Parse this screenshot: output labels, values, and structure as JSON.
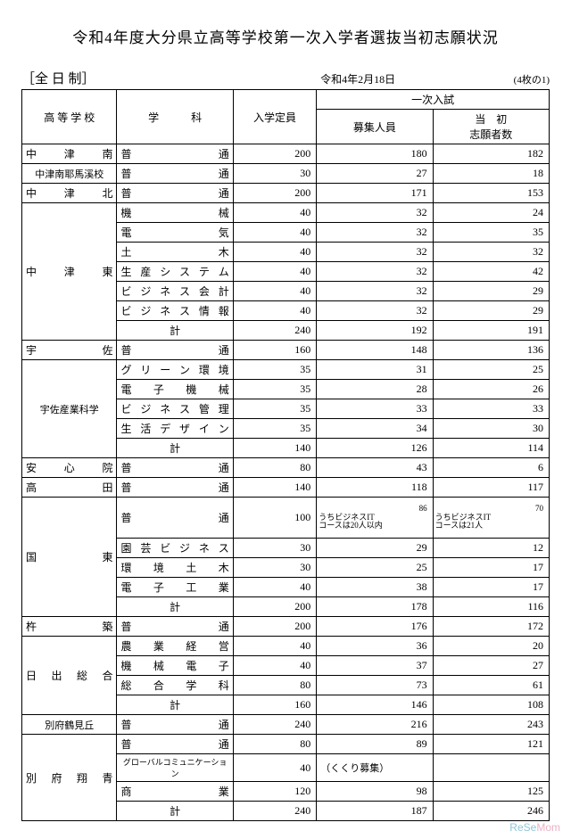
{
  "title": "令和4年度大分県立高等学校第一次入学者選抜当初志願状況",
  "section": "［全 日 制］",
  "date": "令和4年2月18日",
  "page_note": "(4枚の1)",
  "headers": {
    "school": "高 等 学 校",
    "dept": "学　　　科",
    "capacity": "入学定員",
    "exam_group": "一次入試",
    "recruit": "募集人員",
    "applicants": "当　初\n志願者数"
  },
  "rows": [
    {
      "school": "中　津　南",
      "dept": "普　　　　通",
      "cap": "200",
      "rec": "180",
      "app": "182"
    },
    {
      "school": "中津南耶馬溪校",
      "dept": "普　　　　通",
      "cap": "30",
      "rec": "27",
      "app": "18",
      "school_small": true
    },
    {
      "school": "中　津　北",
      "dept": "普　　　　通",
      "cap": "200",
      "rec": "171",
      "app": "153"
    },
    {
      "school": "中　津　東",
      "dept": "機　　　　械",
      "cap": "40",
      "rec": "32",
      "app": "24",
      "rowspan": 7
    },
    {
      "dept": "電　　　　気",
      "cap": "40",
      "rec": "32",
      "app": "35"
    },
    {
      "dept": "土　　　　木",
      "cap": "40",
      "rec": "32",
      "app": "32"
    },
    {
      "dept": "生 産 シ ス テ ム",
      "cap": "40",
      "rec": "32",
      "app": "42"
    },
    {
      "dept": "ビ ジ ネ ス 会 計",
      "cap": "40",
      "rec": "32",
      "app": "29"
    },
    {
      "dept": "ビ ジ ネ ス 情 報",
      "cap": "40",
      "rec": "32",
      "app": "29"
    },
    {
      "dept": "計",
      "cap": "240",
      "rec": "192",
      "app": "191",
      "dept_center": true
    },
    {
      "school": "宇　　　佐",
      "dept": "普　　　　通",
      "cap": "160",
      "rec": "148",
      "app": "136"
    },
    {
      "school": "宇佐産業科学",
      "dept": "グ リ ー ン 環 境",
      "cap": "35",
      "rec": "31",
      "app": "25",
      "rowspan": 5,
      "school_small": true
    },
    {
      "dept": "電　子　機　械",
      "cap": "35",
      "rec": "28",
      "app": "26"
    },
    {
      "dept": "ビ ジ ネ ス 管 理",
      "cap": "35",
      "rec": "33",
      "app": "33"
    },
    {
      "dept": "生 活 デ ザ イ ン",
      "cap": "35",
      "rec": "34",
      "app": "30"
    },
    {
      "dept": "計",
      "cap": "140",
      "rec": "126",
      "app": "114",
      "dept_center": true
    },
    {
      "school": "安　心　院",
      "dept": "普　　　　通",
      "cap": "80",
      "rec": "43",
      "app": "6"
    },
    {
      "school": "高　　　田",
      "dept": "普　　　　通",
      "cap": "140",
      "rec": "118",
      "app": "117"
    },
    {
      "school": "国　　　東",
      "dept": "普　　　　通",
      "cap": "100",
      "rec_note": {
        "n": "86",
        "t": "うちビジネスIT\nコースは20人以内"
      },
      "app_note": {
        "n": "70",
        "t": "うちビジネスIT\nコースは21人"
      },
      "rowspan": 5,
      "tall": true
    },
    {
      "dept": "園 芸 ビ ジ ネ ス",
      "cap": "30",
      "rec": "29",
      "app": "12"
    },
    {
      "dept": "環　境　土　木",
      "cap": "30",
      "rec": "25",
      "app": "17"
    },
    {
      "dept": "電　子　工　業",
      "cap": "40",
      "rec": "38",
      "app": "17"
    },
    {
      "dept": "計",
      "cap": "200",
      "rec": "178",
      "app": "116",
      "dept_center": true
    },
    {
      "school": "杵　　　築",
      "dept": "普　　　　通",
      "cap": "200",
      "rec": "176",
      "app": "172"
    },
    {
      "school": "日 出 総 合",
      "dept": "農　業　経　営",
      "cap": "40",
      "rec": "36",
      "app": "20",
      "rowspan": 4
    },
    {
      "dept": "機　械　電　子",
      "cap": "40",
      "rec": "37",
      "app": "27"
    },
    {
      "dept": "総　合　学　科",
      "cap": "80",
      "rec": "73",
      "app": "61"
    },
    {
      "dept": "計",
      "cap": "160",
      "rec": "146",
      "app": "108",
      "dept_center": true
    },
    {
      "school": "別府鶴見丘",
      "dept": "普　　　　通",
      "cap": "240",
      "rec": "216",
      "app": "243",
      "school_small": true
    },
    {
      "school": "別 府 翔 青",
      "dept": "普　　　　通",
      "cap": "80",
      "rec": "89",
      "app": "121",
      "rowspan": 4
    },
    {
      "dept": "グローバルコミュニケーション",
      "cap": "40",
      "rec_text": "（くくり募集）",
      "app": "",
      "dept_tiny": true
    },
    {
      "dept": "商　　　　業",
      "cap": "120",
      "rec": "98",
      "app": "125"
    },
    {
      "dept": "計",
      "cap": "240",
      "rec": "187",
      "app": "246",
      "dept_center": true
    }
  ],
  "watermark": {
    "a": "ReSe",
    "b": "Mom"
  }
}
